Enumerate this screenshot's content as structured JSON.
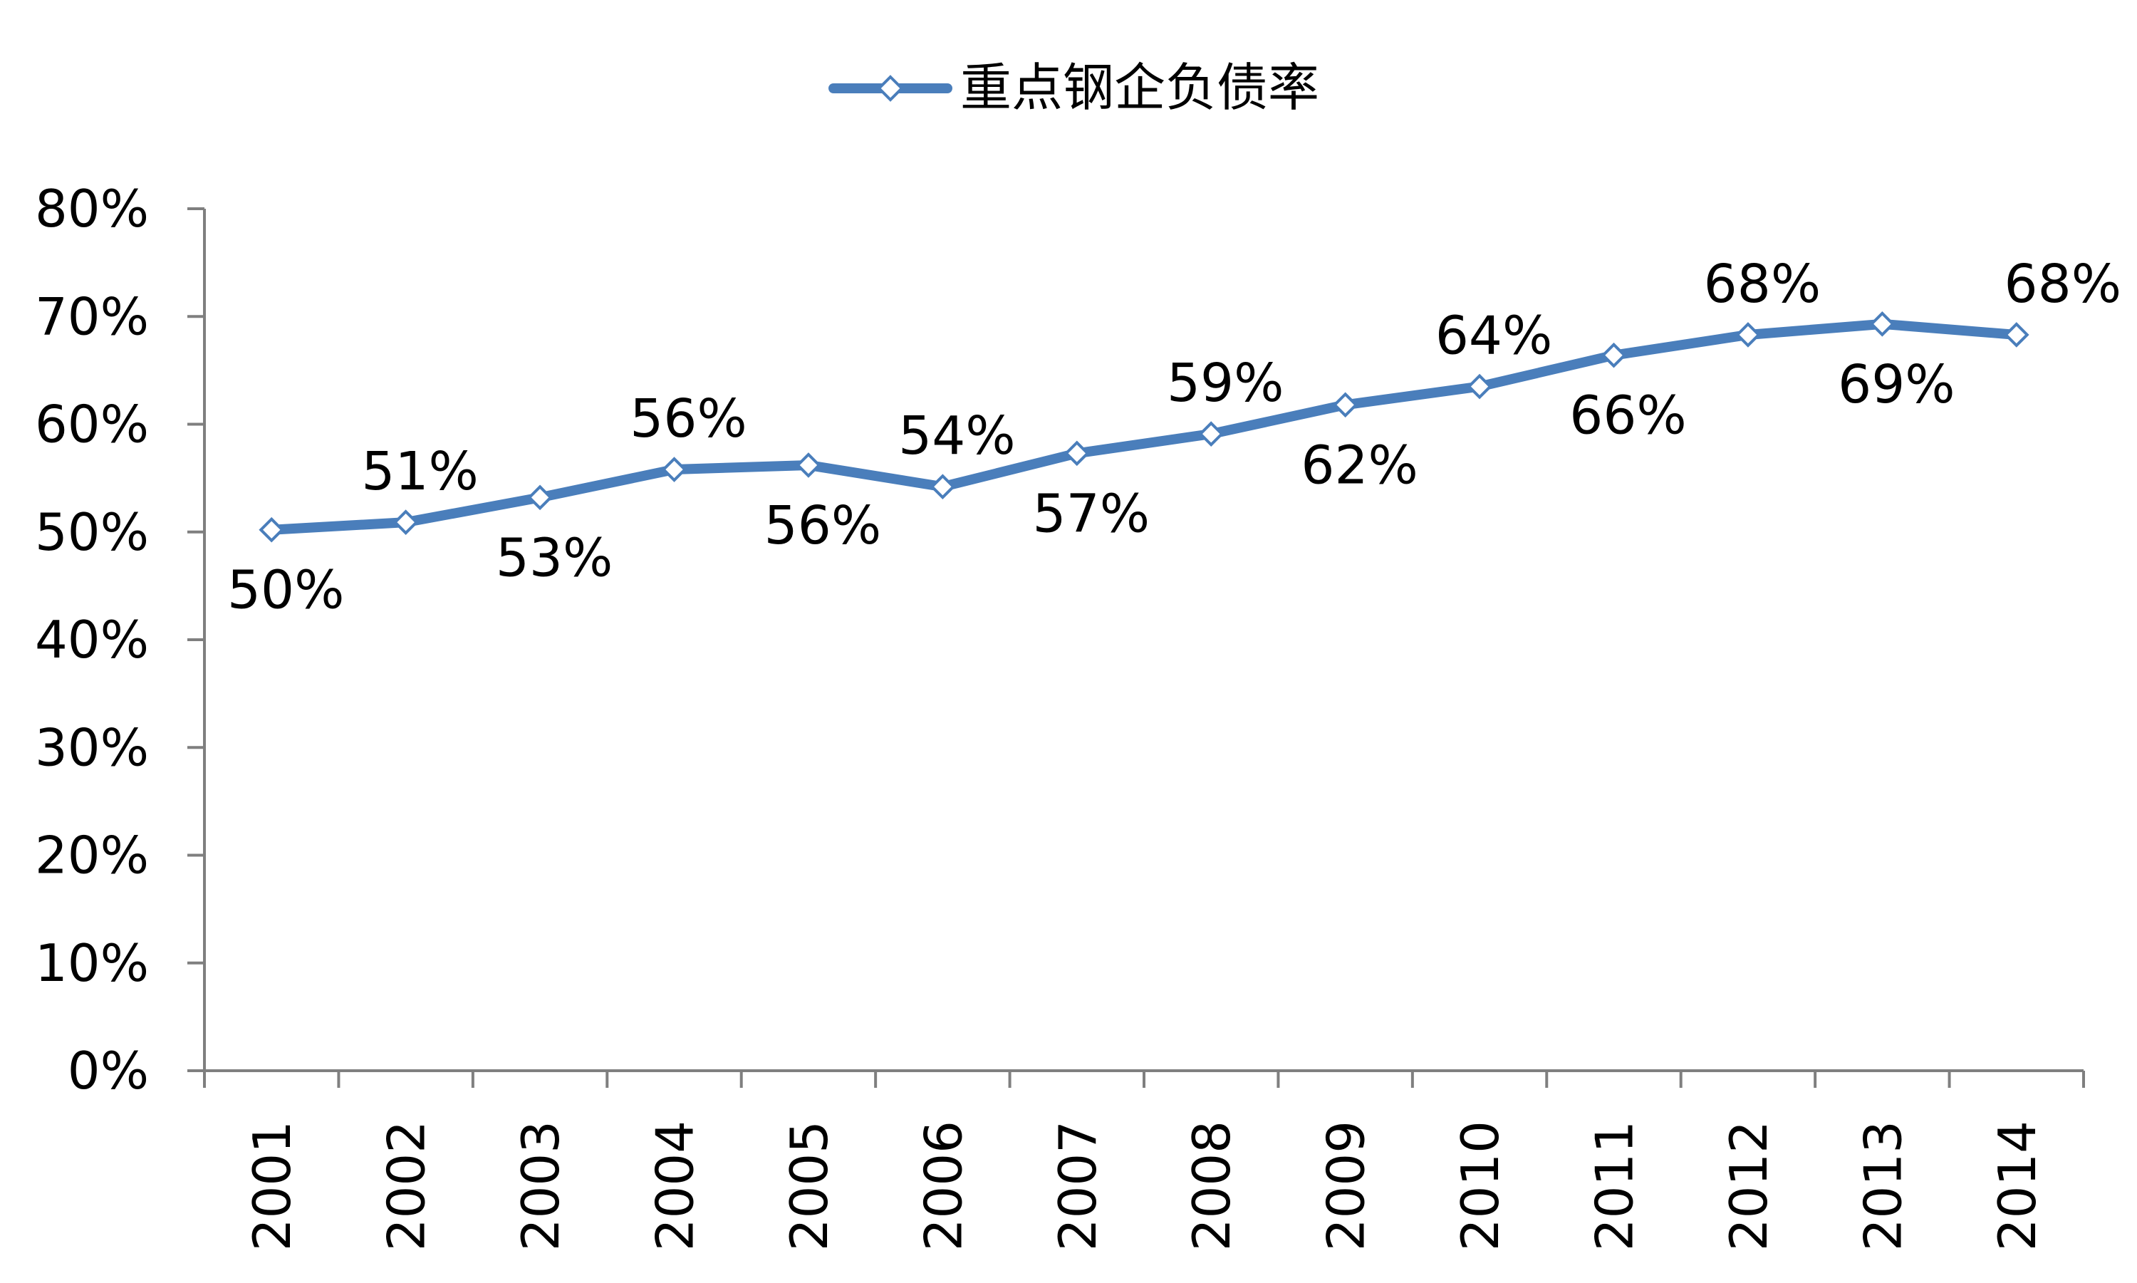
{
  "chart_data": {
    "type": "line",
    "categories": [
      "2001",
      "2002",
      "2003",
      "2004",
      "2005",
      "2006",
      "2007",
      "2008",
      "2009",
      "2010",
      "2011",
      "2012",
      "2013",
      "2014"
    ],
    "series": [
      {
        "name": "重点钢企负债率",
        "values": [
          50.2,
          50.9,
          53.2,
          55.8,
          56.2,
          54.2,
          57.3,
          59.1,
          61.8,
          63.5,
          66.4,
          68.3,
          69.3,
          68.3
        ],
        "labels": [
          "50%",
          "51%",
          "53%",
          "56%",
          "56%",
          "54%",
          "57%",
          "59%",
          "62%",
          "64%",
          "66%",
          "68%",
          "69%",
          "68%"
        ],
        "label_positions": [
          "below",
          "above",
          "below",
          "above",
          "below",
          "above",
          "below",
          "above",
          "below",
          "above",
          "below",
          "above",
          "below",
          "above"
        ],
        "color": "#4a7ebb",
        "marker": "diamond-hollow"
      }
    ],
    "y_ticks": [
      "0%",
      "10%",
      "20%",
      "30%",
      "40%",
      "50%",
      "60%",
      "70%",
      "80%"
    ],
    "ylim": [
      0,
      80
    ],
    "legend_position": "top-center",
    "grid": false
  }
}
